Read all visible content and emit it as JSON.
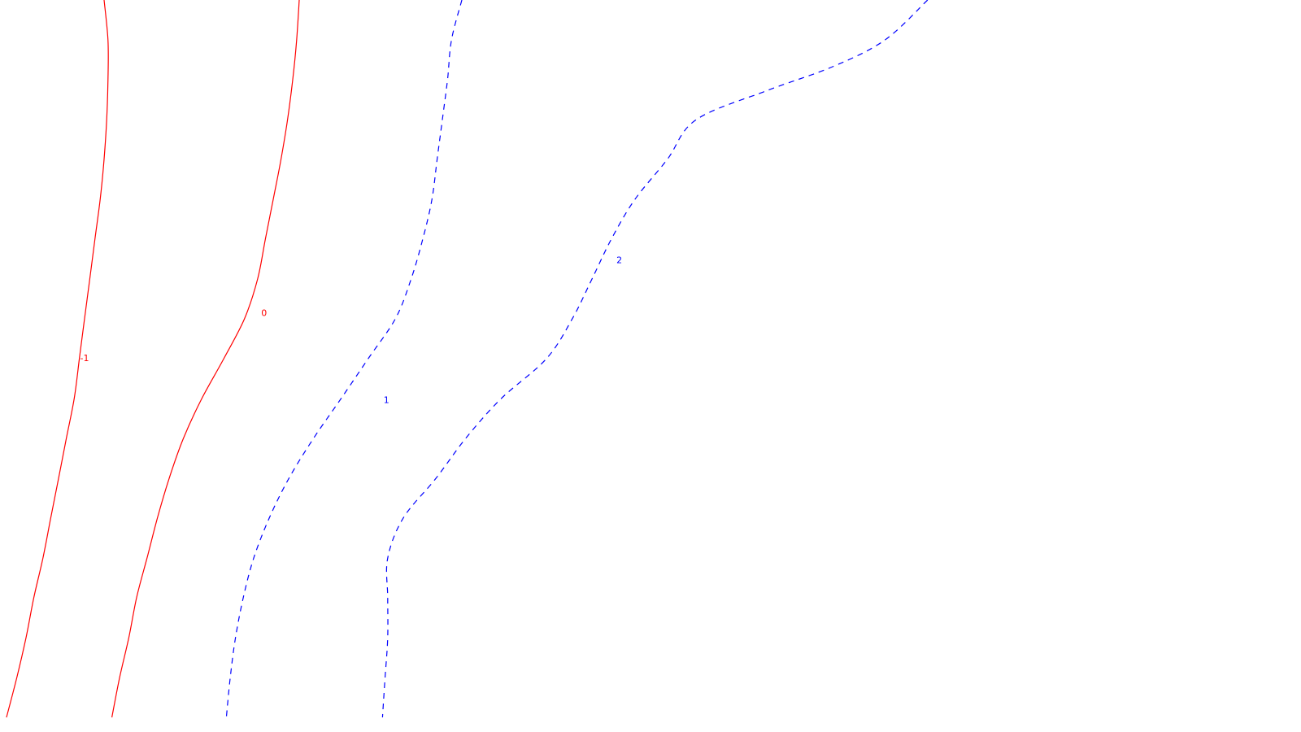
{
  "chart_data": {
    "type": "contour",
    "title": "",
    "xlabel": "",
    "ylabel": "",
    "grid": false,
    "legend": "none",
    "series": [
      {
        "level": "-1",
        "color": "#ff0000",
        "line_style": "solid",
        "points": [
          [
            0.08,
            1.0
          ],
          [
            0.083,
            0.944
          ],
          [
            0.083,
            0.889
          ],
          [
            0.082,
            0.833
          ],
          [
            0.08,
            0.778
          ],
          [
            0.077,
            0.722
          ],
          [
            0.073,
            0.667
          ],
          [
            0.069,
            0.611
          ],
          [
            0.065,
            0.556
          ],
          [
            0.061,
            0.5
          ],
          [
            0.057,
            0.444
          ],
          [
            0.051,
            0.389
          ],
          [
            0.045,
            0.333
          ],
          [
            0.039,
            0.278
          ],
          [
            0.033,
            0.222
          ],
          [
            0.026,
            0.167
          ],
          [
            0.02,
            0.111
          ],
          [
            0.013,
            0.056
          ],
          [
            0.005,
            0.0
          ]
        ],
        "label_at": [
          0.065,
          0.501
        ]
      },
      {
        "level": "0",
        "color": "#ff0000",
        "line_style": "solid",
        "points": [
          [
            0.23,
            1.0
          ],
          [
            0.228,
            0.944
          ],
          [
            0.225,
            0.889
          ],
          [
            0.221,
            0.833
          ],
          [
            0.216,
            0.778
          ],
          [
            0.21,
            0.722
          ],
          [
            0.204,
            0.667
          ],
          [
            0.198,
            0.611
          ],
          [
            0.188,
            0.556
          ],
          [
            0.172,
            0.5
          ],
          [
            0.155,
            0.444
          ],
          [
            0.141,
            0.389
          ],
          [
            0.13,
            0.333
          ],
          [
            0.121,
            0.278
          ],
          [
            0.113,
            0.222
          ],
          [
            0.105,
            0.167
          ],
          [
            0.099,
            0.111
          ],
          [
            0.092,
            0.056
          ],
          [
            0.086,
            0.0
          ]
        ],
        "label_at": [
          0.203,
          0.564
        ]
      },
      {
        "level": "1",
        "color": "#0000ff",
        "line_style": "dashed",
        "points": [
          [
            0.355,
            1.0
          ],
          [
            0.347,
            0.944
          ],
          [
            0.344,
            0.889
          ],
          [
            0.34,
            0.833
          ],
          [
            0.336,
            0.778
          ],
          [
            0.332,
            0.722
          ],
          [
            0.325,
            0.667
          ],
          [
            0.316,
            0.611
          ],
          [
            0.304,
            0.556
          ],
          [
            0.283,
            0.5
          ],
          [
            0.262,
            0.444
          ],
          [
            0.241,
            0.389
          ],
          [
            0.222,
            0.333
          ],
          [
            0.207,
            0.278
          ],
          [
            0.195,
            0.222
          ],
          [
            0.187,
            0.167
          ],
          [
            0.181,
            0.111
          ],
          [
            0.177,
            0.056
          ],
          [
            0.174,
            0.0
          ]
        ],
        "label_at": [
          0.297,
          0.443
        ]
      },
      {
        "level": "2",
        "color": "#0000ff",
        "line_style": "dashed",
        "points": [
          [
            0.713,
            1.0
          ],
          [
            0.68,
            0.944
          ],
          [
            0.64,
            0.907
          ],
          [
            0.59,
            0.874
          ],
          [
            0.535,
            0.833
          ],
          [
            0.513,
            0.778
          ],
          [
            0.488,
            0.722
          ],
          [
            0.47,
            0.667
          ],
          [
            0.455,
            0.611
          ],
          [
            0.44,
            0.556
          ],
          [
            0.42,
            0.5
          ],
          [
            0.385,
            0.444
          ],
          [
            0.358,
            0.389
          ],
          [
            0.335,
            0.333
          ],
          [
            0.31,
            0.278
          ],
          [
            0.298,
            0.222
          ],
          [
            0.298,
            0.167
          ],
          [
            0.298,
            0.111
          ],
          [
            0.296,
            0.056
          ],
          [
            0.294,
            0.0
          ]
        ],
        "label_at": [
          0.476,
          0.638
        ]
      }
    ]
  },
  "colors": {
    "background": "#ffffff",
    "negative": "#ff0000",
    "positive": "#0000ff"
  }
}
